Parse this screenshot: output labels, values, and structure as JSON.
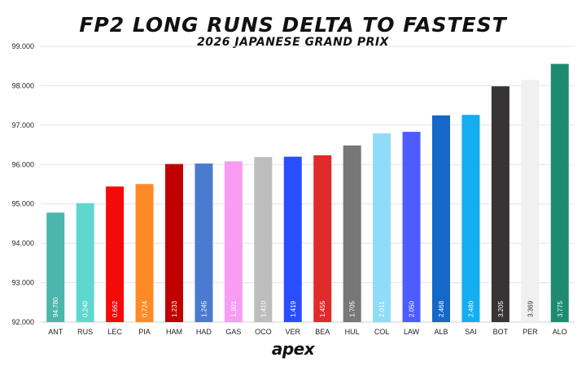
{
  "brand": "apex",
  "chart_data": {
    "type": "bar",
    "title": "FP2 LONG RUNS DELTA TO FASTEST",
    "subtitle": "2026 JAPANESE GRAND PRIX",
    "xlabel": "",
    "ylabel": "",
    "ylim": [
      92.0,
      99.0
    ],
    "yticks": [
      "92.000",
      "93.000",
      "94.000",
      "95.000",
      "96.000",
      "97.000",
      "98.000",
      "99.000"
    ],
    "grid": true,
    "categories": [
      "ANT",
      "RUS",
      "LEC",
      "PIA",
      "HAM",
      "HAD",
      "GAS",
      "OCO",
      "VER",
      "BEA",
      "HUL",
      "COL",
      "LAW",
      "ALB",
      "SAI",
      "BOT",
      "PER",
      "ALO"
    ],
    "values": [
      94.78,
      95.02,
      95.442,
      95.504,
      96.013,
      96.025,
      96.081,
      96.19,
      96.199,
      96.235,
      96.485,
      96.791,
      96.83,
      97.248,
      97.26,
      97.985,
      98.149,
      98.555
    ],
    "labels": [
      "94.780",
      "0.240",
      "0.662",
      "0.724",
      "1.233",
      "1.245",
      "1.301",
      "1.410",
      "1.419",
      "1.455",
      "1.705",
      "2.011",
      "2.050",
      "2.468",
      "2.480",
      "3.205",
      "3.369",
      "3.775"
    ],
    "colors": [
      "#4DB6AC",
      "#5ED8CF",
      "#F50A0A",
      "#FF8A26",
      "#C00000",
      "#4A7BD0",
      "#F99CF3",
      "#BDBDBD",
      "#2A4EFF",
      "#E02B2B",
      "#777777",
      "#8FDCF8",
      "#4D5CFF",
      "#1468C8",
      "#12AEF0",
      "#373435",
      "#F0F0F0",
      "#1E8A72"
    ]
  }
}
